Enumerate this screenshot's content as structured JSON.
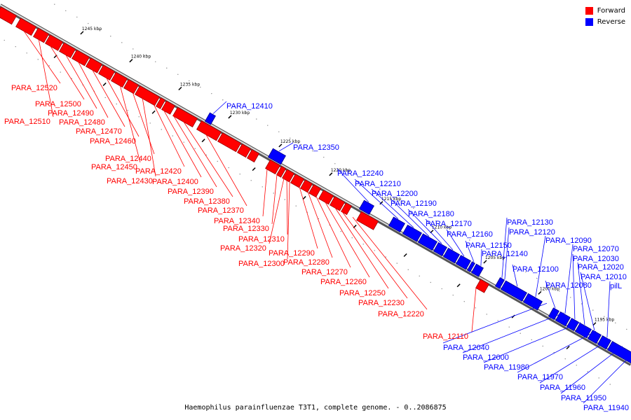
{
  "legend": {
    "forward_label": "Forward",
    "reverse_label": "Reverse",
    "forward_color": "#ff0000",
    "reverse_color": "#0000ff"
  },
  "caption": "Haemophilus parainfluenzae T3T1, complete genome. - 0..2086875",
  "ticks": [
    "1245 kbp",
    "1240 kbp",
    "1235 kbp",
    "1230 kbp",
    "1225 kbp",
    "1220 kbp",
    "1215 kbp",
    "1210 kbp",
    "1205 kbp",
    "1200 kbp",
    "1195 kbp"
  ],
  "forward_genes": [
    "PARA_12520",
    "PARA_12510",
    "PARA_12500",
    "PARA_12490",
    "PARA_12480",
    "PARA_12470",
    "PARA_12460",
    "PARA_12450",
    "PARA_12440",
    "PARA_12430",
    "PARA_12420",
    "PARA_12400",
    "PARA_12390",
    "PARA_12380",
    "PARA_12370",
    "PARA_12340",
    "PARA_12330",
    "PARA_12320",
    "PARA_12310",
    "PARA_12300",
    "PARA_12290",
    "PARA_12280",
    "PARA_12270",
    "PARA_12260",
    "PARA_12250",
    "PARA_12230",
    "PARA_12220",
    "PARA_12110"
  ],
  "reverse_genes": [
    "PARA_12410",
    "PARA_12350",
    "PARA_12240",
    "PARA_12210",
    "PARA_12200",
    "PARA_12190",
    "PARA_12180",
    "PARA_12170",
    "PARA_12160",
    "PARA_12150",
    "PARA_12140",
    "PARA_12130",
    "PARA_12120",
    "PARA_12100",
    "PARA_12090",
    "PARA_12080",
    "PARA_12070",
    "PARA_12030",
    "PARA_12020",
    "PARA_12010",
    "pilL",
    "PARA_12040",
    "PARA_12000",
    "PARA_11980",
    "PARA_11970",
    "PARA_11960",
    "PARA_11950",
    "PARA_11940"
  ]
}
